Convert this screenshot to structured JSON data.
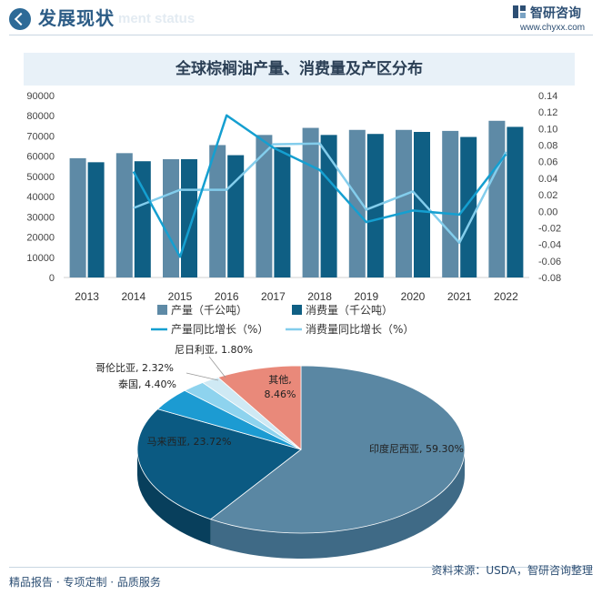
{
  "header": {
    "title": "发展现状",
    "ghost_text": "ment status",
    "brand": "智研咨询",
    "url": "www.chyxx.com"
  },
  "chart_title": "全球棕榈油产量、消费量及产区分布",
  "footer": {
    "left": "精品报告 · 专项定制 · 品质服务",
    "source": "资料来源：USDA，智研咨询整理"
  },
  "watermark": "智研咨询",
  "colors": {
    "production_bar": "#5e8aa6",
    "consumption_bar": "#0f5f84",
    "production_growth_line": "#159fd0",
    "consumption_growth_line": "#83cdec",
    "pie_indonesia": "#5a87a3",
    "pie_malaysia": "#0b5a82",
    "pie_thailand": "#1c9bd2",
    "pie_colombia": "#8ed3ee",
    "pie_nigeria": "#cfe9f4",
    "pie_other": "#e9897a"
  },
  "chart_data": [
    {
      "type": "bar",
      "categories": [
        "2013",
        "2014",
        "2015",
        "2016",
        "2017",
        "2018",
        "2019",
        "2020",
        "2021",
        "2022"
      ],
      "y_ticks": [
        "0",
        "10000",
        "20000",
        "30000",
        "40000",
        "50000",
        "60000",
        "70000",
        "80000",
        "90000"
      ],
      "y2_ticks": [
        "-0.08",
        "-0.06",
        "-0.04",
        "-0.02",
        "0.00",
        "0.02",
        "0.04",
        "0.06",
        "0.08",
        "0.10",
        "0.12",
        "0.14"
      ],
      "ylim": [
        0,
        90000
      ],
      "y2lim": [
        -0.08,
        0.14
      ],
      "series": [
        {
          "name": "产量（千公吨）",
          "kind": "bar",
          "axis": "left",
          "values": [
            59000,
            61500,
            58500,
            65500,
            70500,
            74000,
            73000,
            73000,
            72500,
            77500
          ]
        },
        {
          "name": "消费量（千公吨）",
          "kind": "bar",
          "axis": "left",
          "values": [
            57000,
            57500,
            58500,
            60500,
            64500,
            70500,
            71000,
            72000,
            69500,
            74500
          ]
        },
        {
          "name": "产量同比增长（%）",
          "kind": "line",
          "axis": "right",
          "values": [
            null,
            0.048,
            -0.055,
            0.116,
            0.077,
            0.05,
            -0.013,
            0.001,
            -0.004,
            0.069
          ]
        },
        {
          "name": "消费量同比增长（%）",
          "kind": "line",
          "axis": "right",
          "values": [
            null,
            0.004,
            0.026,
            0.026,
            0.081,
            0.082,
            0.002,
            0.024,
            -0.038,
            0.072
          ]
        }
      ],
      "legend": "bottom"
    },
    {
      "type": "pie",
      "style": "3d",
      "slices": [
        {
          "label": "印度尼西亚, 59.30%",
          "name": "印度尼西亚",
          "value": 59.3
        },
        {
          "label": "马来西亚, 23.72%",
          "name": "马来西亚",
          "value": 23.72
        },
        {
          "label": "泰国, 4.40%",
          "name": "泰国",
          "value": 4.4
        },
        {
          "label": "哥伦比亚, 2.32%",
          "name": "哥伦比亚",
          "value": 2.32
        },
        {
          "label": "尼日利亚, 1.80%",
          "name": "尼日利亚",
          "value": 1.8
        },
        {
          "label": "其他,\n8.46%",
          "name": "其他",
          "value": 8.46
        }
      ]
    }
  ]
}
